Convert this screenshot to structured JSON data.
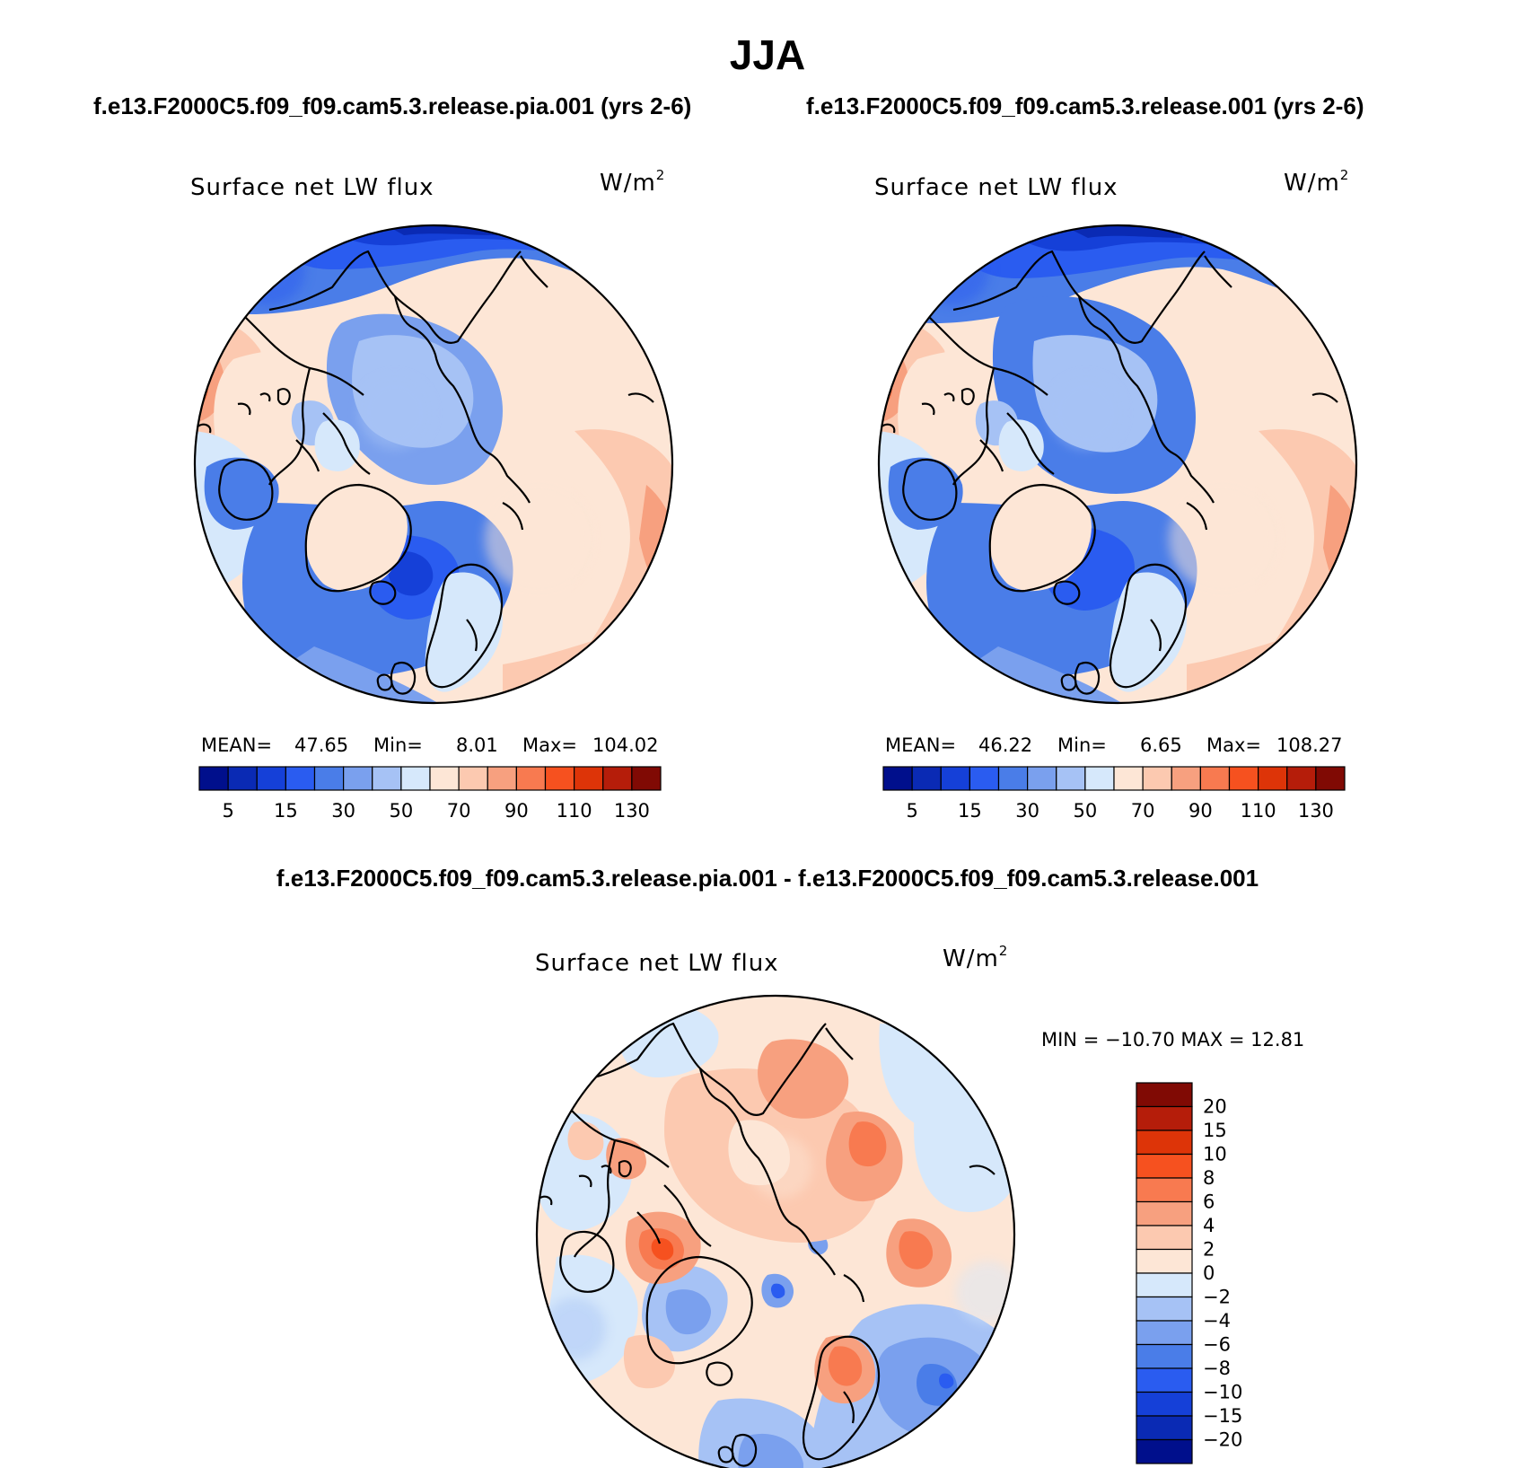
{
  "title": "JJA",
  "panels": [
    {
      "case": "f.e13.F2000C5.f09_f09.cam5.3.release.pia.001 (yrs 2-6)",
      "variable": "Surface net LW flux",
      "units": "W/m",
      "units_sup": "2",
      "mean_label": "MEAN=",
      "mean": "47.65",
      "min_label": "Min=",
      "min": "8.01",
      "max_label": "Max=",
      "max": "104.02"
    },
    {
      "case": "f.e13.F2000C5.f09_f09.cam5.3.release.001 (yrs 2-6)",
      "variable": "Surface net LW flux",
      "units": "W/m",
      "units_sup": "2",
      "mean_label": "MEAN=",
      "mean": "46.22",
      "min_label": "Min=",
      "min": "6.65",
      "max_label": "Max=",
      "max": "108.27"
    }
  ],
  "difference": {
    "title": "f.e13.F2000C5.f09_f09.cam5.3.release.pia.001 - f.e13.F2000C5.f09_f09.cam5.3.release.001",
    "variable": "Surface net LW flux",
    "units": "W/m",
    "units_sup": "2",
    "minmax": "MIN = −10.70 MAX =   12.81"
  },
  "abs_colorbar": {
    "colors": [
      "#000f8c",
      "#0a2ab4",
      "#1540d8",
      "#2a5cf0",
      "#4a7de8",
      "#7aa0ee",
      "#a6c2f5",
      "#d6e8fb",
      "#fde6d6",
      "#fcc9b0",
      "#f7a07f",
      "#f87a50",
      "#f6511f",
      "#dd3408",
      "#b51d0a",
      "#800a04"
    ],
    "tick_labels": [
      "5",
      "15",
      "30",
      "50",
      "70",
      "90",
      "110",
      "130"
    ],
    "tick_boundaries": [
      1,
      3,
      5,
      7,
      9,
      11,
      13,
      15
    ]
  },
  "diff_colorbar": {
    "colors": [
      "#800a04",
      "#b51d0a",
      "#dd3408",
      "#f6511f",
      "#f87a50",
      "#f7a07f",
      "#fcc9b0",
      "#fde6d6",
      "#d6e8fb",
      "#a6c2f5",
      "#7aa0ee",
      "#4a7de8",
      "#2a5cf0",
      "#1540d8",
      "#0a2ab4",
      "#000f8c"
    ],
    "tick_labels": [
      "20",
      "15",
      "10",
      "8",
      "6",
      "4",
      "2",
      "0",
      "−2",
      "−4",
      "−6",
      "−8",
      "−10",
      "−15",
      "−20"
    ]
  }
}
